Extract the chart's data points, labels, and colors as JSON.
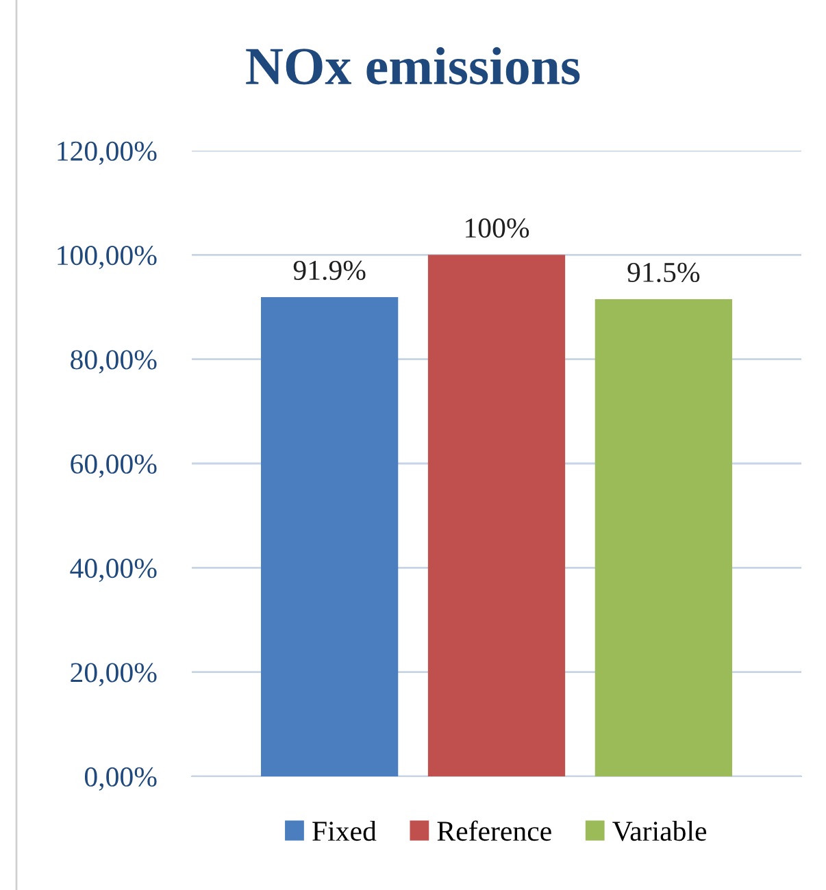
{
  "chart_data": {
    "type": "bar",
    "title": "NOx emissions",
    "categories": [
      null
    ],
    "series": [
      {
        "name": "Fixed",
        "color": "#4a7ebf",
        "values": [
          91.9
        ],
        "value_labels": [
          "91.9%"
        ]
      },
      {
        "name": "Reference",
        "color": "#c0504d",
        "values": [
          100
        ],
        "value_labels": [
          "100%"
        ]
      },
      {
        "name": "Variable",
        "color": "#9bbb59",
        "values": [
          91.5
        ],
        "value_labels": [
          "91.5%"
        ]
      }
    ],
    "ylim": [
      0,
      120
    ],
    "yticks": [
      {
        "value": 0,
        "label": "0,00%"
      },
      {
        "value": 20,
        "label": "20,00%"
      },
      {
        "value": 40,
        "label": "40,00%"
      },
      {
        "value": 60,
        "label": "60,00%"
      },
      {
        "value": 80,
        "label": "80,00%"
      },
      {
        "value": 100,
        "label": "100,00%"
      },
      {
        "value": 120,
        "label": "120,00%"
      }
    ],
    "grid": "y",
    "legend": "bottom"
  }
}
